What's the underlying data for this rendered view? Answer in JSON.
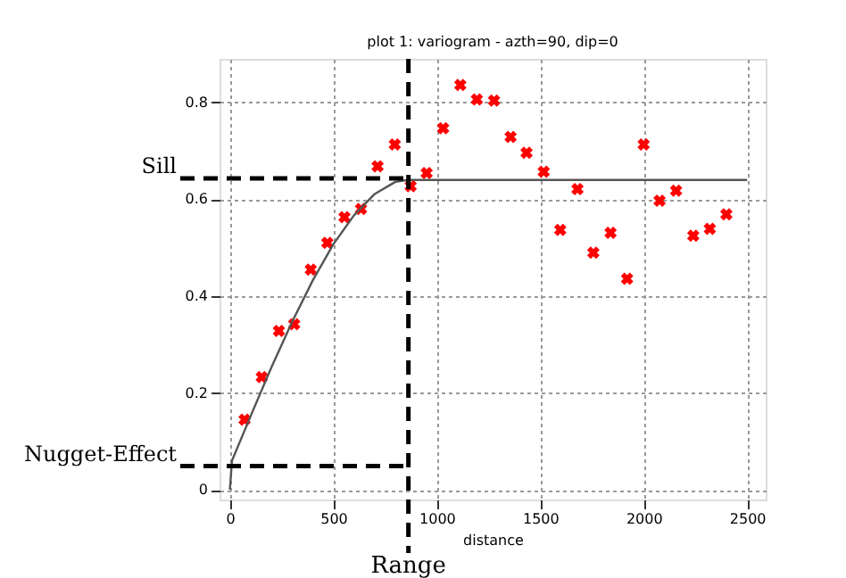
{
  "chart_data": {
    "type": "scatter",
    "title": "plot 1:  variogram - azth=90, dip=0",
    "xlabel": "distance",
    "xlim": [
      -50,
      2590
    ],
    "ylim": [
      -0.02,
      0.89
    ],
    "xticks": [
      0,
      500,
      1000,
      1500,
      2000,
      2500
    ],
    "yticks": [
      {
        "value": 0,
        "label": "0"
      },
      0.2,
      0.4,
      0.6,
      0.8
    ],
    "grid": true,
    "series": [
      {
        "color": "#ff0000",
        "marker": "cross",
        "x": [
          71,
          154,
          237,
          311,
          391,
          471,
          554,
          634,
          714,
          797,
          874,
          951,
          1031,
          1114,
          1194,
          1277,
          1357,
          1434,
          1517,
          1597,
          1680,
          1757,
          1840,
          1920,
          2000,
          2077,
          2157,
          2240,
          2320,
          2400
        ],
        "values": [
          0.145,
          0.233,
          0.328,
          0.342,
          0.455,
          0.51,
          0.563,
          0.58,
          0.668,
          0.713,
          0.627,
          0.654,
          0.747,
          0.836,
          0.806,
          0.804,
          0.729,
          0.696,
          0.657,
          0.537,
          0.621,
          0.49,
          0.531,
          0.436,
          0.713,
          0.597,
          0.618,
          0.525,
          0.539,
          0.569
        ]
      },
      {
        "type": "line",
        "color": "#555555",
        "marker": "none",
        "line_style": "solid",
        "x": [
          0,
          10,
          100,
          200,
          300,
          400,
          500,
          600,
          700,
          800,
          860,
          2500
        ],
        "values": [
          0,
          0.06,
          0.152,
          0.252,
          0.346,
          0.432,
          0.507,
          0.567,
          0.611,
          0.636,
          0.64,
          0.64
        ]
      }
    ],
    "ref_lines": [
      {
        "axis": "y",
        "value": 0.643,
        "label": "Sill",
        "color": "#000000",
        "line_style": "dashed"
      },
      {
        "axis": "y",
        "value": 0.049,
        "label": "Nugget-Effect",
        "color": "#000000",
        "line_style": "dashed"
      },
      {
        "axis": "x",
        "value": 863,
        "label": "Range",
        "color": "#000000",
        "line_style": "dashed"
      }
    ]
  }
}
